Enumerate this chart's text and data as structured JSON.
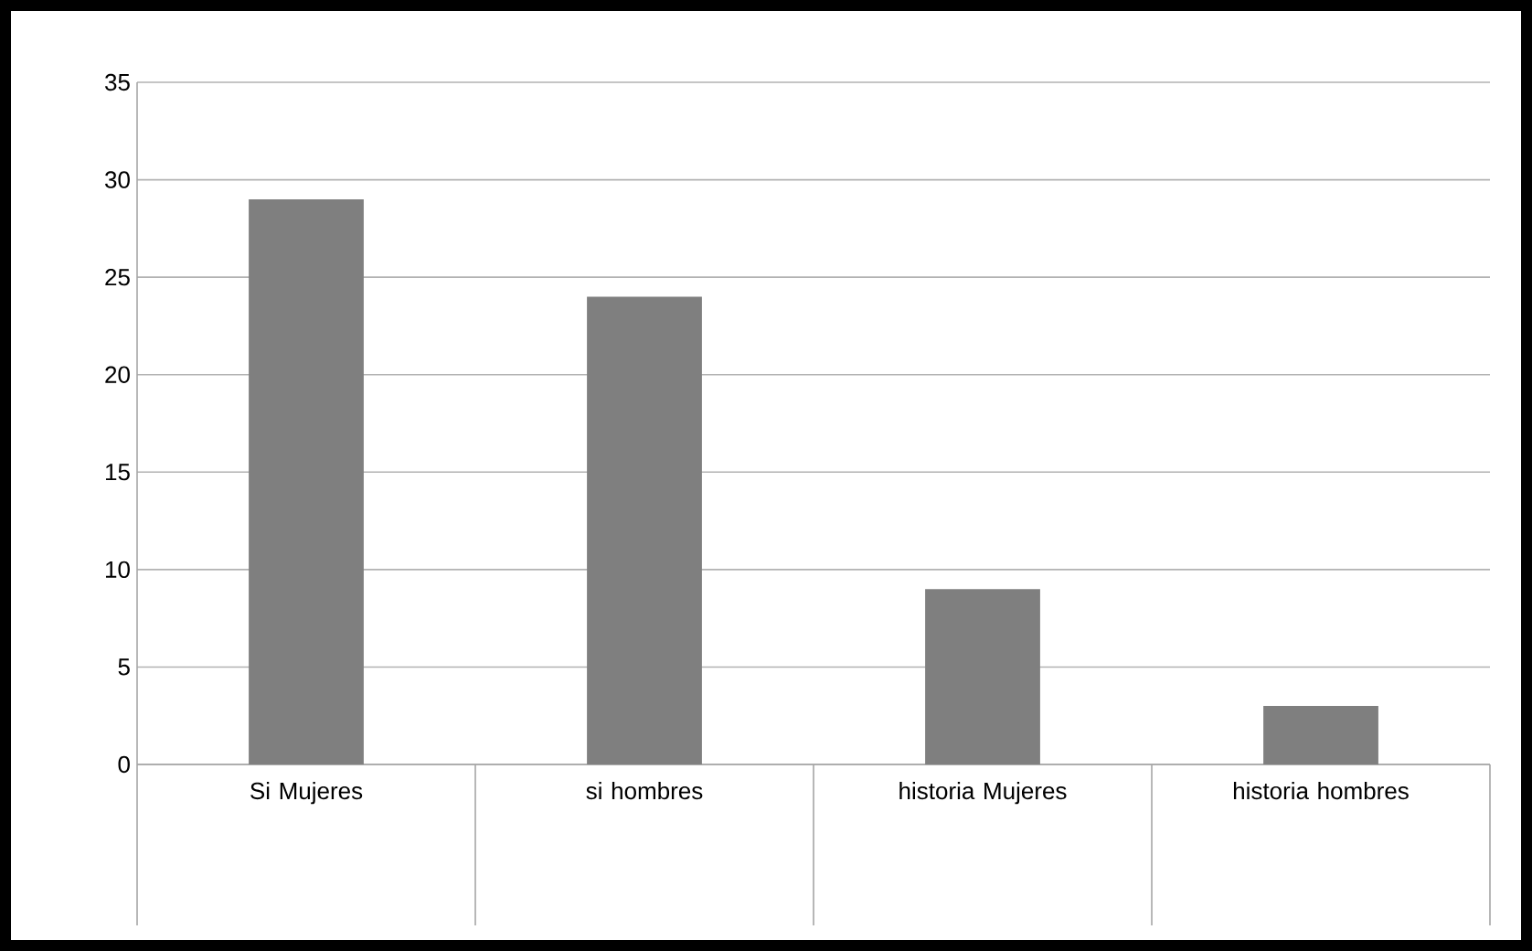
{
  "chart_data": {
    "type": "bar",
    "categories": [
      "Si Mujeres",
      "si hombres",
      "historia Mujeres",
      "historia hombres"
    ],
    "values": [
      29,
      24,
      9,
      3
    ],
    "color": "#7f7f7f",
    "ylim": [
      0,
      35
    ],
    "yticks": [
      0,
      5,
      10,
      15,
      20,
      25,
      30,
      35
    ],
    "grid": "y"
  }
}
